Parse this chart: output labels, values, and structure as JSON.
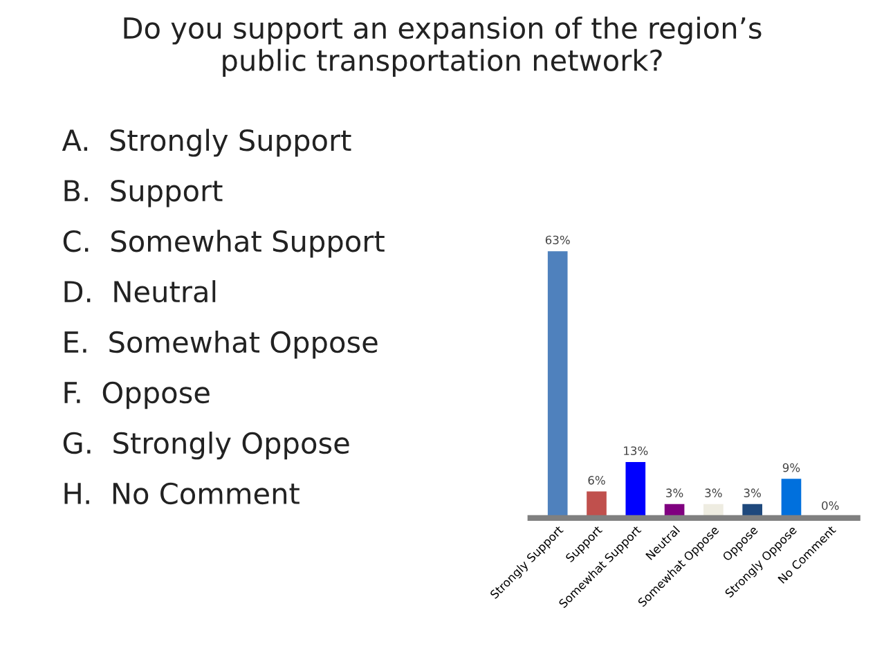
{
  "chart_data": {
    "type": "bar",
    "title": "Do you support an expansion of the region’s\npublic transportation network?",
    "categories": [
      "Strongly Support",
      "Support",
      "Somewhat Support",
      "Neutral",
      "Somewhat Oppose",
      "Oppose",
      "Strongly Oppose",
      "No Comment"
    ],
    "values": [
      63,
      6,
      13,
      3,
      3,
      3,
      9,
      0
    ],
    "value_labels": [
      "63%",
      "6%",
      "13%",
      "3%",
      "3%",
      "3%",
      "9%",
      "0%"
    ],
    "colors": [
      "#4f81bd",
      "#c0504d",
      "#0000ff",
      "#800080",
      "#eeece1",
      "#1f497d",
      "#0070dd",
      "#c6d9f1"
    ],
    "tick_labels": "x",
    "grid": false,
    "legend": false,
    "annotations": [
      "A.  Strongly Support",
      "B.  Support",
      "C.  Somewhat Support",
      "D.  Neutral",
      "E.  Somewhat Oppose",
      "F.  Oppose",
      "G.  Strongly Oppose",
      "H.  No Comment"
    ]
  }
}
